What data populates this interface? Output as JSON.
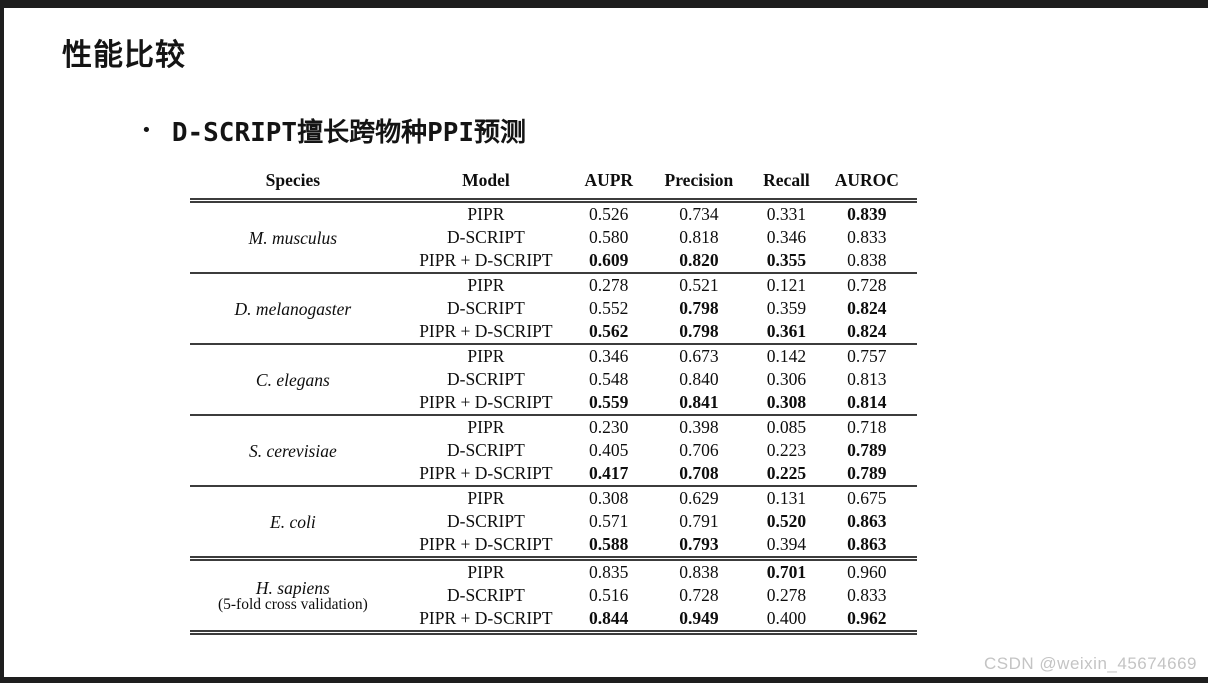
{
  "slide": {
    "title": "性能比较",
    "bullet_marker": "•",
    "bullet": "D-SCRIPT擅长跨物种PPI预测"
  },
  "watermark": "CSDN @weixin_45674669",
  "chart_data": {
    "type": "table",
    "columns": [
      "Species",
      "Model",
      "AUPR",
      "Precision",
      "Recall",
      "AUROC"
    ],
    "groups": [
      {
        "species": "M. musculus",
        "species_note": "",
        "separator": "single",
        "rows": [
          {
            "model": "PIPR",
            "values": [
              "0.526",
              "0.734",
              "0.331",
              "0.839"
            ],
            "bold": [
              false,
              false,
              false,
              true
            ]
          },
          {
            "model": "D-SCRIPT",
            "values": [
              "0.580",
              "0.818",
              "0.346",
              "0.833"
            ],
            "bold": [
              false,
              false,
              false,
              false
            ]
          },
          {
            "model": "PIPR + D-SCRIPT",
            "values": [
              "0.609",
              "0.820",
              "0.355",
              "0.838"
            ],
            "bold": [
              true,
              true,
              true,
              false
            ]
          }
        ]
      },
      {
        "species": "D. melanogaster",
        "species_note": "",
        "separator": "single",
        "rows": [
          {
            "model": "PIPR",
            "values": [
              "0.278",
              "0.521",
              "0.121",
              "0.728"
            ],
            "bold": [
              false,
              false,
              false,
              false
            ]
          },
          {
            "model": "D-SCRIPT",
            "values": [
              "0.552",
              "0.798",
              "0.359",
              "0.824"
            ],
            "bold": [
              false,
              true,
              false,
              true
            ]
          },
          {
            "model": "PIPR + D-SCRIPT",
            "values": [
              "0.562",
              "0.798",
              "0.361",
              "0.824"
            ],
            "bold": [
              true,
              true,
              true,
              true
            ]
          }
        ]
      },
      {
        "species": "C. elegans",
        "species_note": "",
        "separator": "single",
        "rows": [
          {
            "model": "PIPR",
            "values": [
              "0.346",
              "0.673",
              "0.142",
              "0.757"
            ],
            "bold": [
              false,
              false,
              false,
              false
            ]
          },
          {
            "model": "D-SCRIPT",
            "values": [
              "0.548",
              "0.840",
              "0.306",
              "0.813"
            ],
            "bold": [
              false,
              false,
              false,
              false
            ]
          },
          {
            "model": "PIPR + D-SCRIPT",
            "values": [
              "0.559",
              "0.841",
              "0.308",
              "0.814"
            ],
            "bold": [
              true,
              true,
              true,
              true
            ]
          }
        ]
      },
      {
        "species": "S. cerevisiae",
        "species_note": "",
        "separator": "single",
        "rows": [
          {
            "model": "PIPR",
            "values": [
              "0.230",
              "0.398",
              "0.085",
              "0.718"
            ],
            "bold": [
              false,
              false,
              false,
              false
            ]
          },
          {
            "model": "D-SCRIPT",
            "values": [
              "0.405",
              "0.706",
              "0.223",
              "0.789"
            ],
            "bold": [
              false,
              false,
              false,
              true
            ]
          },
          {
            "model": "PIPR + D-SCRIPT",
            "values": [
              "0.417",
              "0.708",
              "0.225",
              "0.789"
            ],
            "bold": [
              true,
              true,
              true,
              true
            ]
          }
        ]
      },
      {
        "species": "E. coli",
        "species_note": "",
        "separator": "double",
        "rows": [
          {
            "model": "PIPR",
            "values": [
              "0.308",
              "0.629",
              "0.131",
              "0.675"
            ],
            "bold": [
              false,
              false,
              false,
              false
            ]
          },
          {
            "model": "D-SCRIPT",
            "values": [
              "0.571",
              "0.791",
              "0.520",
              "0.863"
            ],
            "bold": [
              false,
              false,
              true,
              true
            ]
          },
          {
            "model": "PIPR + D-SCRIPT",
            "values": [
              "0.588",
              "0.793",
              "0.394",
              "0.863"
            ],
            "bold": [
              true,
              true,
              false,
              true
            ]
          }
        ]
      },
      {
        "species": "H. sapiens",
        "species_note": "(5-fold cross validation)",
        "separator": "double",
        "rows": [
          {
            "model": "PIPR",
            "values": [
              "0.835",
              "0.838",
              "0.701",
              "0.960"
            ],
            "bold": [
              false,
              false,
              true,
              false
            ]
          },
          {
            "model": "D-SCRIPT",
            "values": [
              "0.516",
              "0.728",
              "0.278",
              "0.833"
            ],
            "bold": [
              false,
              false,
              false,
              false
            ]
          },
          {
            "model": "PIPR + D-SCRIPT",
            "values": [
              "0.844",
              "0.949",
              "0.400",
              "0.962"
            ],
            "bold": [
              true,
              true,
              false,
              true
            ]
          }
        ]
      }
    ]
  }
}
